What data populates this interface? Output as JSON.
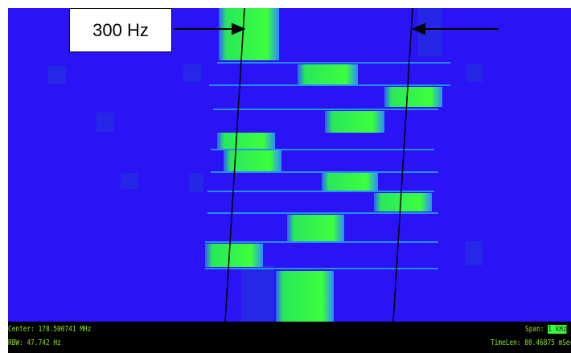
{
  "annotation": {
    "label": "300 Hz"
  },
  "status_bar": {
    "center": "Center: 178.500741 MHz",
    "rbw": "RBW: 47.742 Hz",
    "span_label": "Span:",
    "span_value": "1 kHz",
    "timelen": "TimeLen: 80.46875 mSec"
  }
}
